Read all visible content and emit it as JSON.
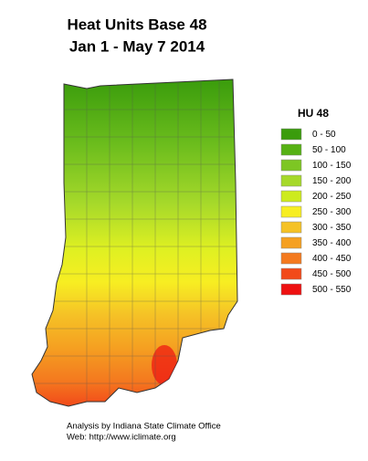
{
  "title": [
    "Heat Units Base 48",
    "Jan 1 - May 7  2014"
  ],
  "legend": {
    "title": "HU 48",
    "items": [
      {
        "label": "0 -  50",
        "color": "#3a9c0c"
      },
      {
        "label": "50 - 100",
        "color": "#56b114"
      },
      {
        "label": "100 - 150",
        "color": "#7dc623"
      },
      {
        "label": "150 - 200",
        "color": "#a6d92a"
      },
      {
        "label": "200 - 250",
        "color": "#cdeb1e"
      },
      {
        "label": "250 - 300",
        "color": "#f7ee22"
      },
      {
        "label": "300 - 350",
        "color": "#f5c226"
      },
      {
        "label": "350 - 400",
        "color": "#f5a021"
      },
      {
        "label": "400 - 450",
        "color": "#f47a1f"
      },
      {
        "label": "450 - 500",
        "color": "#f24a1a"
      },
      {
        "label": "500 - 550",
        "color": "#ee1111"
      }
    ]
  },
  "credits": [
    "Analysis by Indiana State Climate Office",
    "Web:   http://www.iclimate.org"
  ]
}
